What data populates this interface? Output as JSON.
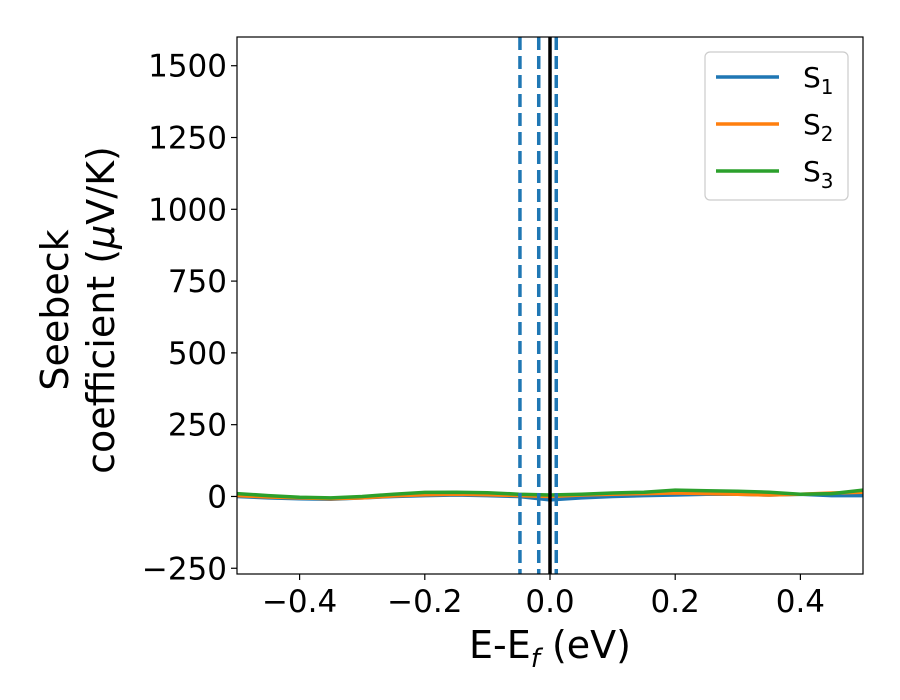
{
  "chart_data": {
    "type": "line",
    "xlabel": "E-E",
    "xlabel_sub": "f",
    "xlabel_unit": " (eV)",
    "ylabel_line1": "Seebeck",
    "ylabel_line2": "coefficient  (",
    "ylabel_mu": "μ",
    "ylabel_unit": "V/K)",
    "xlim": [
      -0.5,
      0.5
    ],
    "ylim": [
      -270,
      1600
    ],
    "xticks": [
      -0.4,
      -0.2,
      0.0,
      0.2,
      0.4
    ],
    "xtick_labels": [
      "−0.4",
      "−0.2",
      "0.0",
      "0.2",
      "0.4"
    ],
    "yticks": [
      -250,
      0,
      250,
      500,
      750,
      1000,
      1250,
      1500
    ],
    "ytick_labels": [
      "−250",
      "0",
      "250",
      "500",
      "750",
      "1000",
      "1250",
      "1500"
    ],
    "grid": false,
    "legend_position": "upper right",
    "fermi_line": {
      "x": 0.0,
      "color": "#000000"
    },
    "band_edges": {
      "x": [
        -0.048,
        -0.018,
        0.01
      ],
      "color": "#1f77b4",
      "style": "dashed"
    },
    "series": [
      {
        "name": "S",
        "subscript": "1",
        "color": "#1f77b4",
        "x": [
          -0.5,
          -0.45,
          -0.4,
          -0.35,
          -0.3,
          -0.25,
          -0.2,
          -0.15,
          -0.1,
          -0.05,
          0.0,
          0.05,
          0.1,
          0.15,
          0.2,
          0.25,
          0.3,
          0.35,
          0.4,
          0.45,
          0.5
        ],
        "y": [
          0,
          -5,
          -8,
          -10,
          -5,
          0,
          3,
          5,
          3,
          0,
          -12,
          -5,
          0,
          3,
          5,
          8,
          8,
          5,
          8,
          3,
          3
        ]
      },
      {
        "name": "S",
        "subscript": "2",
        "color": "#ff7f0e",
        "x": [
          -0.5,
          -0.45,
          -0.4,
          -0.35,
          -0.3,
          -0.25,
          -0.2,
          -0.15,
          -0.1,
          -0.05,
          0.0,
          0.05,
          0.1,
          0.15,
          0.2,
          0.25,
          0.3,
          0.35,
          0.4,
          0.45,
          0.5
        ],
        "y": [
          3,
          -2,
          -5,
          -8,
          -5,
          2,
          6,
          8,
          6,
          3,
          0,
          5,
          8,
          10,
          12,
          10,
          8,
          5,
          8,
          12,
          15
        ]
      },
      {
        "name": "S",
        "subscript": "3",
        "color": "#2ca02c",
        "x": [
          -0.5,
          -0.45,
          -0.4,
          -0.35,
          -0.3,
          -0.25,
          -0.2,
          -0.15,
          -0.1,
          -0.05,
          0.0,
          0.05,
          0.1,
          0.15,
          0.2,
          0.25,
          0.3,
          0.35,
          0.4,
          0.45,
          0.5
        ],
        "y": [
          10,
          3,
          -3,
          -5,
          0,
          8,
          14,
          15,
          13,
          8,
          5,
          8,
          12,
          15,
          22,
          20,
          18,
          15,
          8,
          10,
          22
        ]
      }
    ]
  }
}
